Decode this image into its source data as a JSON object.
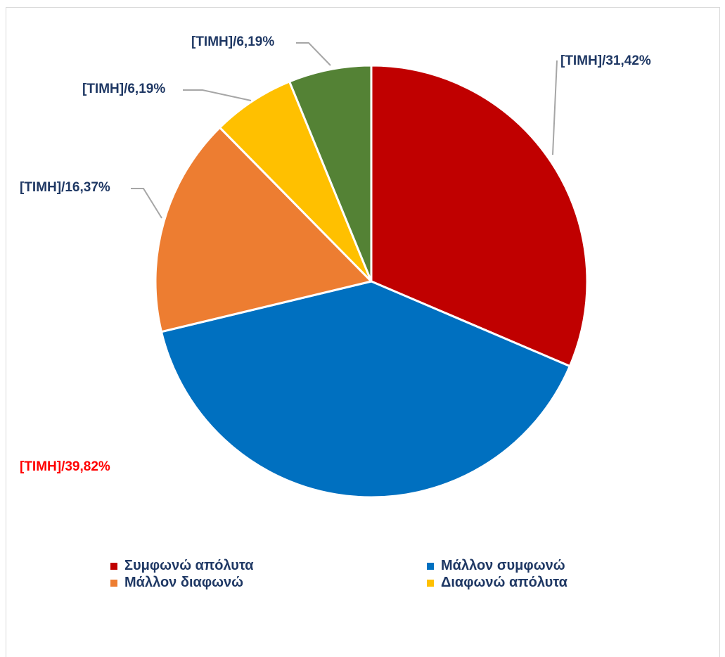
{
  "chart_data": {
    "type": "pie",
    "start_angle_deg": 0,
    "direction": "clockwise",
    "slices": [
      {
        "name": "Συμφωνώ απόλυτα",
        "value": 31.42,
        "color": "#c00000",
        "label": "[ΤΙΜΗ]/31,42%",
        "label_color": "#1f3864"
      },
      {
        "name": "Μάλλον συμφωνώ",
        "value": 39.82,
        "color": "#0070c0",
        "label": "[ΤΙΜΗ]/39,82%",
        "label_color": "#ff0000"
      },
      {
        "name": "Μάλλον διαφωνώ",
        "value": 16.37,
        "color": "#ed7d31",
        "label": "[ΤΙΜΗ]/16,37%",
        "label_color": "#1f3864"
      },
      {
        "name": "Διαφωνώ απόλυτα",
        "value": 6.19,
        "color": "#ffc000",
        "label": "[ΤΙΜΗ]/6,19%",
        "label_color": "#1f3864"
      },
      {
        "name": "",
        "value": 6.19,
        "color": "#548235",
        "label": "[ΤΙΜΗ]/6,19%",
        "label_color": "#1f3864"
      }
    ],
    "legend": {
      "position": "bottom",
      "entries": [
        {
          "name": "Συμφωνώ απόλυτα",
          "color": "#c00000"
        },
        {
          "name": "Μάλλον συμφωνώ",
          "color": "#0070c0"
        },
        {
          "name": "Μάλλον διαφωνώ",
          "color": "#ed7d31"
        },
        {
          "name": "Διαφωνώ απόλυτα",
          "color": "#ffc000"
        }
      ]
    },
    "leader_line_color": "#a6a6a6"
  }
}
